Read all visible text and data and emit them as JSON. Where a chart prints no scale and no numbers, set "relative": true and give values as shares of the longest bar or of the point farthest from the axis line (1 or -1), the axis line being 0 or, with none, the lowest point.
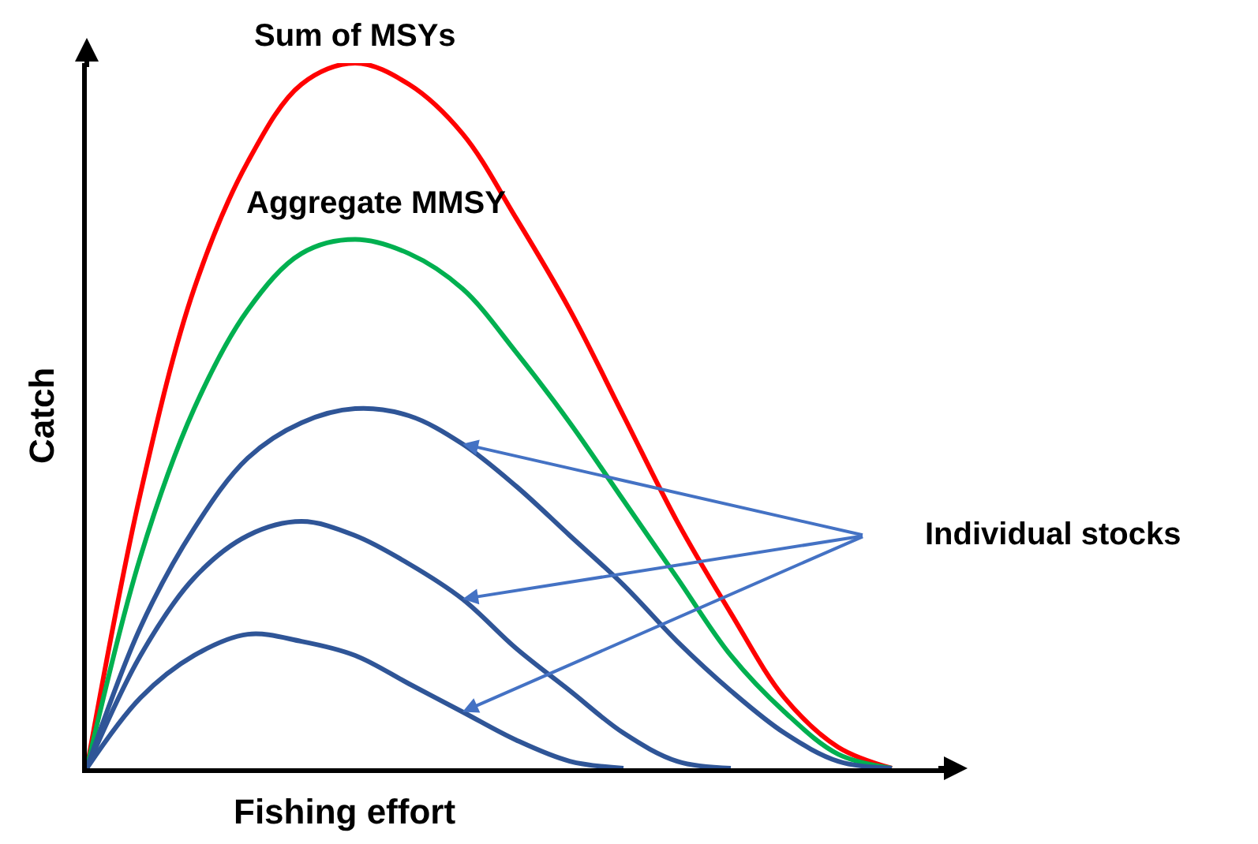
{
  "chart_data": {
    "type": "line",
    "relative": true,
    "xlabel": "Fishing effort",
    "ylabel": "Catch",
    "marker": "none",
    "categories": [
      null,
      null,
      null,
      null,
      null,
      null,
      null,
      null,
      null,
      null,
      null,
      null,
      null,
      null,
      null,
      null,
      null
    ],
    "series": [
      {
        "color": "#ff0000",
        "values": [
          0,
          0.39,
          0.68,
          0.86,
          0.97,
          1,
          0.97,
          0.9,
          0.78,
          0.65,
          0.5,
          0.35,
          0.22,
          0.1,
          0.03,
          0,
          null
        ]
      },
      {
        "color": "#00b050",
        "values": [
          0,
          0.3,
          0.51,
          0.65,
          0.73,
          0.75,
          0.73,
          0.68,
          0.59,
          0.49,
          0.38,
          0.27,
          0.16,
          0.08,
          0.02,
          0,
          null
        ]
      },
      {
        "color": "#2f5597",
        "values": [
          0,
          0.2,
          0.34,
          0.44,
          0.49,
          0.51,
          0.5,
          0.46,
          0.4,
          0.33,
          0.26,
          0.18,
          0.11,
          0.05,
          0.01,
          0,
          null
        ]
      },
      {
        "color": "#2f5597",
        "values": [
          0,
          0.16,
          0.27,
          0.33,
          0.35,
          0.33,
          0.29,
          0.24,
          0.17,
          0.11,
          0.05,
          0.01,
          0,
          null,
          null,
          null,
          null
        ]
      },
      {
        "color": "#2f5597",
        "values": [
          0,
          0.1,
          0.16,
          0.19,
          0.18,
          0.16,
          0.12,
          0.08,
          0.04,
          0.01,
          0,
          null,
          null,
          null,
          null,
          null,
          null
        ]
      }
    ],
    "annotations": [
      "Sum of MSYs",
      "Aggregate MMSY",
      "Individual stocks"
    ]
  }
}
